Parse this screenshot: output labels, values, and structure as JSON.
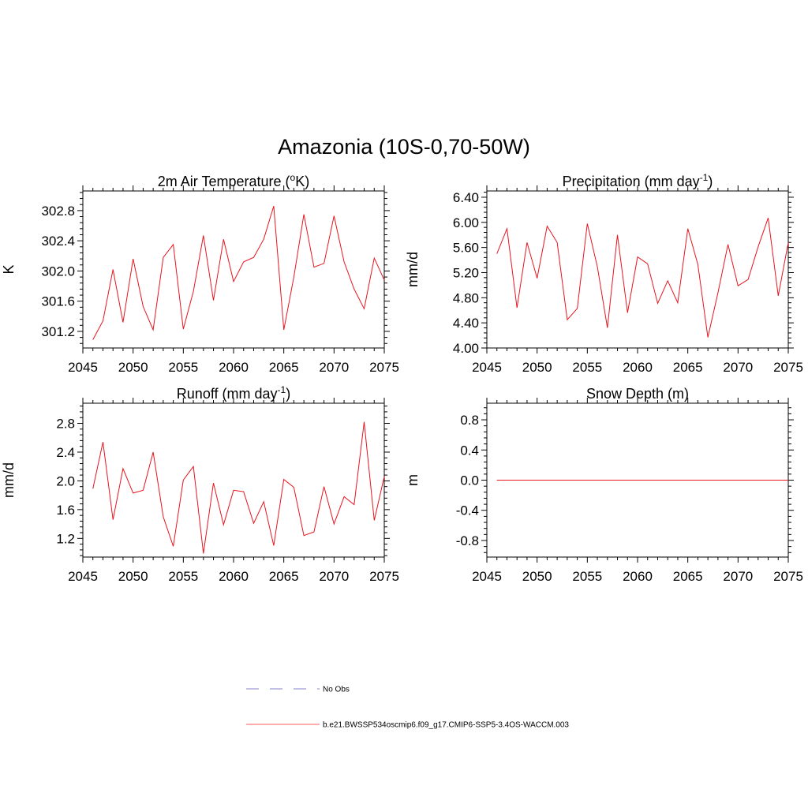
{
  "figure": {
    "title": "Amazonia (10S-0,70-50W)"
  },
  "colors": {
    "model_line": "#e8141e",
    "obs_line": "#9a9ad8",
    "axis": "#000000"
  },
  "legend": {
    "items": [
      {
        "label": "No Obs",
        "style": "dashed",
        "color": "#9a9ad8"
      },
      {
        "label": "b.e21.BWSSP534oscmip6.f09_g17.CMIP6-SSP5-3.4OS-WACCM.003",
        "style": "solid",
        "color": "#ff7b7b"
      }
    ]
  },
  "chart_data": [
    {
      "type": "line",
      "title": "2m Air Temperature (",
      "title_sup": "o",
      "title_after": "K)",
      "xlabel": "",
      "ylabel": "K",
      "xlim": [
        2045,
        2075
      ],
      "ylim": [
        300.98,
        303.06
      ],
      "xticks": [
        2045,
        2050,
        2055,
        2060,
        2065,
        2070,
        2075
      ],
      "xtick_labels": [
        "2045",
        "2050",
        "2055",
        "2060",
        "2065",
        "2070",
        "2075"
      ],
      "yticks": [
        301.2,
        301.6,
        302.0,
        302.4,
        302.8
      ],
      "ytick_labels": [
        "301.2",
        "301.6",
        "302.0",
        "302.4",
        "302.8"
      ],
      "minor_y_step": 0.08,
      "series": [
        {
          "name": "b.e21.BWSSP534oscmip6.f09_g17.CMIP6-SSP5-3.4OS-WACCM.003",
          "x": [
            2046,
            2047,
            2048,
            2049,
            2050,
            2051,
            2052,
            2053,
            2054,
            2055,
            2056,
            2057,
            2058,
            2059,
            2060,
            2061,
            2062,
            2063,
            2064,
            2065,
            2066,
            2067,
            2068,
            2069,
            2070,
            2071,
            2072,
            2073,
            2074,
            2075
          ],
          "y": [
            301.09,
            301.34,
            302.02,
            301.32,
            302.16,
            301.53,
            301.22,
            302.18,
            302.35,
            301.23,
            301.73,
            302.47,
            301.61,
            302.42,
            301.86,
            302.12,
            302.18,
            302.42,
            302.86,
            301.22,
            301.92,
            302.75,
            302.05,
            302.1,
            302.73,
            302.12,
            301.76,
            301.5,
            302.17,
            301.88
          ]
        }
      ]
    },
    {
      "type": "line",
      "title": "Precipitation (mm day",
      "title_sup": "-1",
      "title_after": ")",
      "xlabel": "",
      "ylabel": "mm/d",
      "xlim": [
        2045,
        2075
      ],
      "ylim": [
        4.0,
        6.5
      ],
      "xticks": [
        2045,
        2050,
        2055,
        2060,
        2065,
        2070,
        2075
      ],
      "xtick_labels": [
        "2045",
        "2050",
        "2055",
        "2060",
        "2065",
        "2070",
        "2075"
      ],
      "yticks": [
        4.0,
        4.4,
        4.8,
        5.2,
        5.6,
        6.0,
        6.4
      ],
      "ytick_labels": [
        "4.00",
        "4.40",
        "4.80",
        "5.20",
        "5.60",
        "6.00",
        "6.40"
      ],
      "minor_y_step": 0.08,
      "series": [
        {
          "name": "b.e21.BWSSP534oscmip6.f09_g17.CMIP6-SSP5-3.4OS-WACCM.003",
          "x": [
            2046,
            2047,
            2048,
            2049,
            2050,
            2051,
            2052,
            2053,
            2054,
            2055,
            2056,
            2057,
            2058,
            2059,
            2060,
            2061,
            2062,
            2063,
            2064,
            2065,
            2066,
            2067,
            2068,
            2069,
            2070,
            2071,
            2072,
            2073,
            2074,
            2075
          ],
          "y": [
            5.5,
            5.9,
            4.64,
            5.68,
            5.11,
            5.94,
            5.68,
            4.45,
            4.63,
            5.98,
            5.29,
            4.32,
            5.8,
            4.56,
            5.45,
            5.34,
            4.71,
            5.07,
            4.72,
            5.9,
            5.33,
            4.17,
            4.88,
            5.65,
            4.99,
            5.09,
            5.61,
            6.07,
            4.83,
            5.68
          ]
        }
      ]
    },
    {
      "type": "line",
      "title": "Runoff (mm day",
      "title_sup": "-1",
      "title_after": ")",
      "xlabel": "",
      "ylabel": "mm/d",
      "xlim": [
        2045,
        2075
      ],
      "ylim": [
        0.94,
        3.08
      ],
      "xticks": [
        2045,
        2050,
        2055,
        2060,
        2065,
        2070,
        2075
      ],
      "xtick_labels": [
        "2045",
        "2050",
        "2055",
        "2060",
        "2065",
        "2070",
        "2075"
      ],
      "yticks": [
        1.2,
        1.6,
        2.0,
        2.4,
        2.8
      ],
      "ytick_labels": [
        "1.2",
        "1.6",
        "2.0",
        "2.4",
        "2.8"
      ],
      "minor_y_step": 0.08,
      "series": [
        {
          "name": "b.e21.BWSSP534oscmip6.f09_g17.CMIP6-SSP5-3.4OS-WACCM.003",
          "x": [
            2046,
            2047,
            2048,
            2049,
            2050,
            2051,
            2052,
            2053,
            2054,
            2055,
            2056,
            2057,
            2058,
            2059,
            2060,
            2061,
            2062,
            2063,
            2064,
            2065,
            2066,
            2067,
            2068,
            2069,
            2070,
            2071,
            2072,
            2073,
            2074,
            2075
          ],
          "y": [
            1.89,
            2.54,
            1.46,
            2.17,
            1.83,
            1.87,
            2.4,
            1.5,
            1.09,
            2.01,
            2.2,
            0.99,
            1.97,
            1.39,
            1.87,
            1.85,
            1.41,
            1.71,
            1.1,
            2.02,
            1.91,
            1.24,
            1.29,
            1.92,
            1.4,
            1.78,
            1.67,
            2.82,
            1.45,
            2.06
          ]
        }
      ]
    },
    {
      "type": "line",
      "title": "Snow Depth (m)",
      "title_sup": "",
      "title_after": "",
      "xlabel": "",
      "ylabel": "m",
      "xlim": [
        2045,
        2075
      ],
      "ylim": [
        -1.02,
        1.02
      ],
      "xticks": [
        2045,
        2050,
        2055,
        2060,
        2065,
        2070,
        2075
      ],
      "xtick_labels": [
        "2045",
        "2050",
        "2055",
        "2060",
        "2065",
        "2070",
        "2075"
      ],
      "yticks": [
        -0.8,
        -0.4,
        0.0,
        0.4,
        0.8
      ],
      "ytick_labels": [
        "-0.8",
        "-0.4",
        "0.0",
        "0.4",
        "0.8"
      ],
      "minor_y_step": 0.08,
      "series": [
        {
          "name": "b.e21.BWSSP534oscmip6.f09_g17.CMIP6-SSP5-3.4OS-WACCM.003",
          "x": [
            2046,
            2047,
            2048,
            2049,
            2050,
            2051,
            2052,
            2053,
            2054,
            2055,
            2056,
            2057,
            2058,
            2059,
            2060,
            2061,
            2062,
            2063,
            2064,
            2065,
            2066,
            2067,
            2068,
            2069,
            2070,
            2071,
            2072,
            2073,
            2074,
            2075
          ],
          "y": [
            0,
            0,
            0,
            0,
            0,
            0,
            0,
            0,
            0,
            0,
            0,
            0,
            0,
            0,
            0,
            0,
            0,
            0,
            0,
            0,
            0,
            0,
            0,
            0,
            0,
            0,
            0,
            0,
            0,
            0
          ]
        }
      ]
    }
  ]
}
